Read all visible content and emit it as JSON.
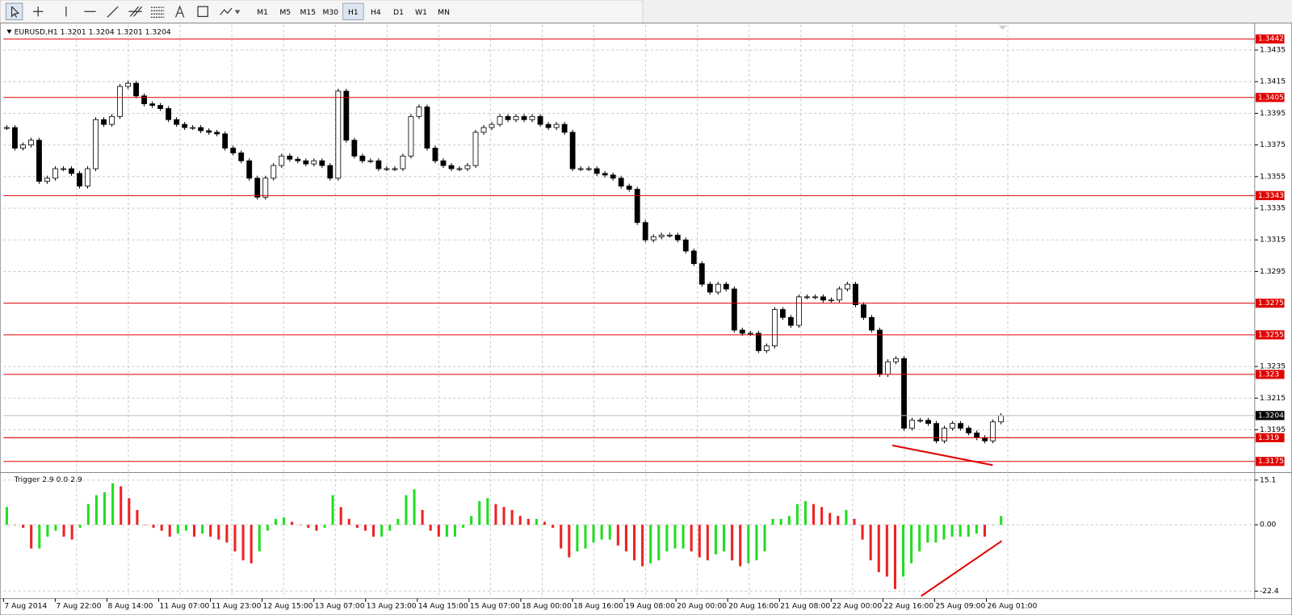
{
  "toolbar": {
    "timeframes": [
      "M1",
      "M5",
      "M15",
      "M30",
      "H1",
      "H4",
      "D1",
      "W1",
      "MN"
    ],
    "active": "H1"
  },
  "chart": {
    "header": "EURUSD,H1  1.3201 1.3204 1.3201 1.3204",
    "ylim": [
      1.3169,
      1.3451
    ],
    "yticks": [
      1.3435,
      1.3415,
      1.3395,
      1.3375,
      1.3355,
      1.3335,
      1.3315,
      1.3295,
      1.3235,
      1.3215,
      1.3195
    ],
    "levels": [
      1.3442,
      1.3405,
      1.3343,
      1.3275,
      1.3255,
      1.323,
      1.319,
      1.3175
    ],
    "level_color": "#e00000",
    "current_price": 1.3204,
    "closes": [
      1.3386,
      1.3373,
      1.3375,
      1.3378,
      1.3352,
      1.3354,
      1.336,
      1.336,
      1.3357,
      1.3349,
      1.336,
      1.3391,
      1.3388,
      1.3393,
      1.3412,
      1.3414,
      1.3406,
      1.3401,
      1.34,
      1.3398,
      1.3391,
      1.3388,
      1.3386,
      1.3386,
      1.3384,
      1.3383,
      1.3382,
      1.3373,
      1.337,
      1.3365,
      1.3354,
      1.3342,
      1.3354,
      1.3362,
      1.3368,
      1.3366,
      1.3365,
      1.3363,
      1.3365,
      1.3362,
      1.3354,
      1.3409,
      1.3378,
      1.3368,
      1.3365,
      1.3365,
      1.336,
      1.336,
      1.336,
      1.3368,
      1.3393,
      1.3399,
      1.3373,
      1.3365,
      1.3362,
      1.336,
      1.336,
      1.3362,
      1.3383,
      1.3386,
      1.3388,
      1.3393,
      1.3391,
      1.3393,
      1.3391,
      1.3393,
      1.3388,
      1.3386,
      1.3388,
      1.3383,
      1.336,
      1.336,
      1.336,
      1.3357,
      1.3356,
      1.3354,
      1.3349,
      1.3347,
      1.3326,
      1.3315,
      1.3317,
      1.3318,
      1.3318,
      1.3315,
      1.3308,
      1.33,
      1.3287,
      1.3282,
      1.3287,
      1.3284,
      1.3258,
      1.3256,
      1.3256,
      1.3245,
      1.3248,
      1.3271,
      1.3266,
      1.3261,
      1.3279,
      1.3279,
      1.3279,
      1.3277,
      1.3277,
      1.3284,
      1.3287,
      1.3274,
      1.3266,
      1.3258,
      1.323,
      1.3238,
      1.324,
      1.3196,
      1.3201,
      1.3201,
      1.3199,
      1.3188,
      1.3196,
      1.3199,
      1.3196,
      1.3193,
      1.319,
      1.3188,
      1.32,
      1.3204
    ],
    "x_labels": [
      "7 Aug 2014",
      "7 Aug 22:00",
      "8 Aug 14:00",
      "11 Aug 07:00",
      "11 Aug 23:00",
      "12 Aug 15:00",
      "13 Aug 07:00",
      "13 Aug 23:00",
      "14 Aug 15:00",
      "15 Aug 07:00",
      "18 Aug 00:00",
      "18 Aug 16:00",
      "19 Aug 08:00",
      "20 Aug 00:00",
      "20 Aug 16:00",
      "21 Aug 08:00",
      "22 Aug 00:00",
      "22 Aug 16:00",
      "25 Aug 09:00",
      "26 Aug 01:00"
    ]
  },
  "indicator": {
    "header": "Trigger 2.9 0.0 2.9",
    "ylim": [
      -24.9,
      16.8
    ],
    "yticks": [
      15.1,
      {
        "value": 0,
        "label": "0.00"
      },
      -22.4
    ],
    "values": [
      6,
      0,
      -1,
      -8,
      -8,
      -4,
      -2,
      -4,
      -5,
      -1,
      7,
      10,
      11,
      14,
      13,
      9,
      5,
      0,
      -1,
      -2,
      -4,
      -3,
      -2,
      -4,
      -3,
      -4,
      -5,
      -6,
      -9,
      -12,
      -13,
      -9,
      -2,
      2,
      2.5,
      1,
      0,
      -1,
      -2,
      -1,
      10,
      6,
      2,
      -1,
      -2,
      -4,
      -4,
      -2,
      2,
      10,
      12,
      5,
      -2,
      -4,
      -4,
      -4,
      -1,
      3,
      8,
      9,
      7,
      6,
      5,
      3,
      2,
      2,
      1,
      -1,
      -8,
      -11,
      -9,
      -8,
      -6,
      -5,
      -5,
      -7,
      -9,
      -12,
      -14,
      -13,
      -12,
      -9,
      -8,
      -8,
      -9,
      -11,
      -12,
      -10,
      -9,
      -12,
      -14,
      -13,
      -12,
      -9,
      2,
      2,
      3,
      7,
      8,
      7,
      6,
      4,
      3,
      5,
      2,
      -5,
      -12,
      -16,
      -17.5,
      -21.7,
      -17.5,
      -13,
      -9,
      -6,
      -6,
      -5,
      -4,
      -4,
      -4,
      -3,
      -4,
      0,
      3
    ],
    "up_color": "#22dd22",
    "down_color": "#ee2222"
  }
}
